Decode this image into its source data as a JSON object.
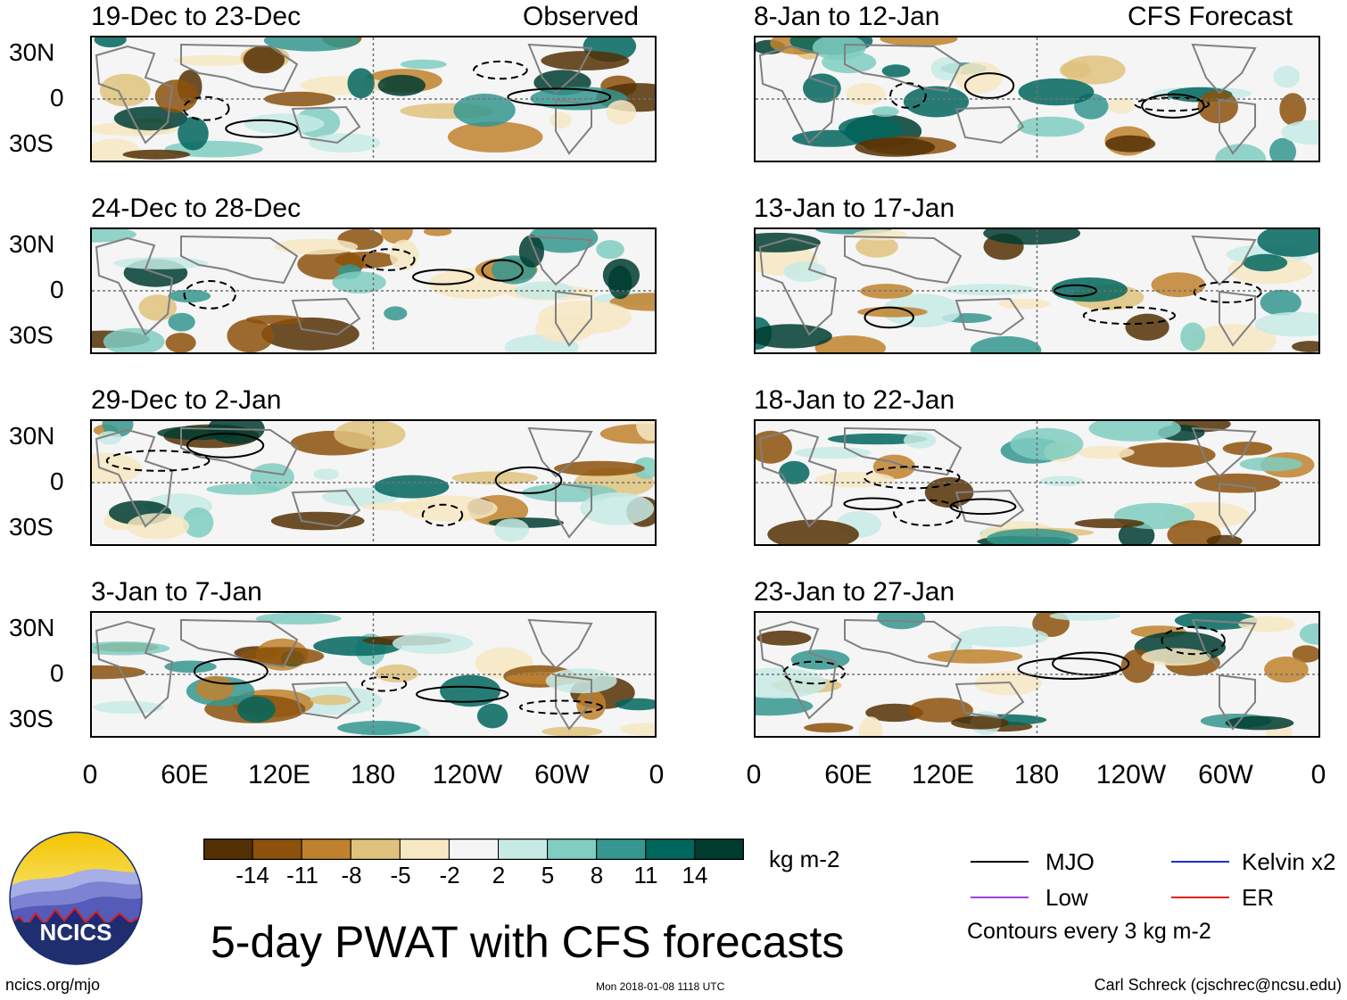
{
  "panels_left": [
    {
      "title": "19-Dec to 23-Dec",
      "label": "Observed"
    },
    {
      "title": "24-Dec to 28-Dec",
      "label": ""
    },
    {
      "title": "29-Dec to 2-Jan",
      "label": ""
    },
    {
      "title": "3-Jan to 7-Jan",
      "label": ""
    }
  ],
  "panels_right": [
    {
      "title": "8-Jan to 12-Jan",
      "label": "CFS Forecast"
    },
    {
      "title": "13-Jan to 17-Jan",
      "label": ""
    },
    {
      "title": "18-Jan to 22-Jan",
      "label": ""
    },
    {
      "title": "23-Jan to 27-Jan",
      "label": ""
    }
  ],
  "y_axis": {
    "north": "30N",
    "equator": "0",
    "south": "30S"
  },
  "x_axis": [
    "0",
    "60E",
    "120E",
    "180",
    "120W",
    "60W",
    "0"
  ],
  "colorbar": {
    "ticks": [
      "-14",
      "-11",
      "-8",
      "-5",
      "-2",
      "2",
      "5",
      "8",
      "11",
      "14"
    ],
    "colors": [
      "#543005",
      "#8c510a",
      "#bf812d",
      "#dfc27d",
      "#f6e8c3",
      "#f5f5f5",
      "#c7eae5",
      "#80cdc1",
      "#35978f",
      "#01665e",
      "#003c30"
    ],
    "units": "kg m-2"
  },
  "legend": {
    "items": [
      {
        "label": "MJO",
        "color": "#000000"
      },
      {
        "label": "Kelvin x2",
        "color": "#1f2fd6"
      },
      {
        "label": "Low",
        "color": "#a040e0"
      },
      {
        "label": "ER",
        "color": "#e02020"
      }
    ],
    "note": "Contours every 3 kg m-2"
  },
  "main_title": "5-day PWAT with CFS forecasts",
  "footer": {
    "website": "ncics.org/mjo",
    "timestamp": "Mon 2018-01-08 1118 UTC",
    "author": "Carl Schreck (cjschrec@ncsu.edu)"
  },
  "logo": {
    "text": "NCICS"
  }
}
